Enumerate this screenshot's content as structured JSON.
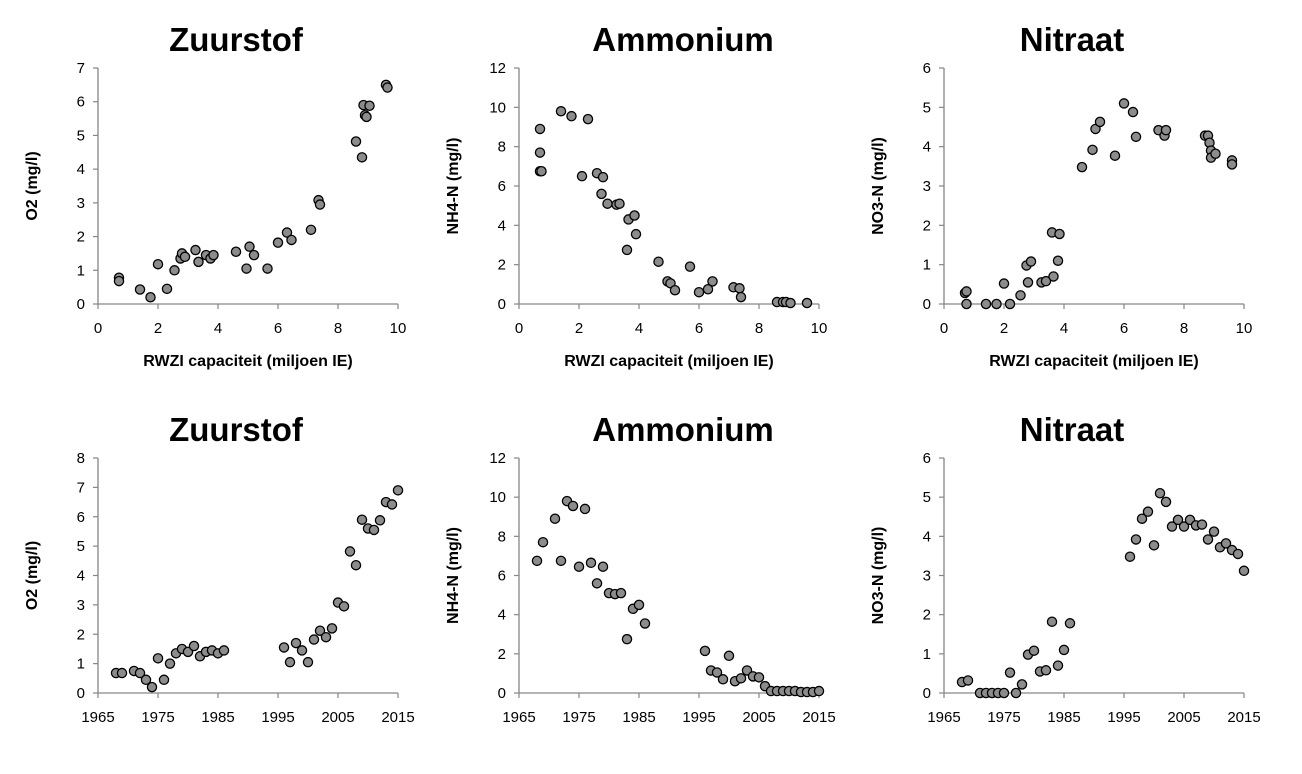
{
  "chart_data": [
    {
      "type": "scatter",
      "title": "Zuurstof",
      "xlabel": "RWZI capaciteit (miljoen IE)",
      "ylabel": "O2 (mg/l)",
      "xlim": [
        0,
        10
      ],
      "ylim": [
        0,
        7
      ],
      "xticks": [
        "0",
        "2",
        "4",
        "6",
        "8",
        "10"
      ],
      "yticks": [
        "0",
        "1",
        "2",
        "3",
        "4",
        "5",
        "6",
        "7"
      ],
      "x": [
        0.7,
        0.7,
        1.4,
        1.75,
        2.0,
        2.3,
        2.55,
        2.75,
        2.8,
        2.9,
        3.25,
        3.35,
        3.6,
        3.75,
        3.85,
        4.6,
        4.95,
        5.05,
        5.2,
        5.65,
        6.0,
        6.3,
        6.45,
        7.1,
        7.35,
        7.4,
        8.6,
        8.8,
        8.85,
        8.9,
        8.95,
        9.05,
        9.6,
        9.65
      ],
      "y": [
        0.78,
        0.68,
        0.43,
        0.2,
        1.18,
        0.45,
        1.0,
        1.35,
        1.5,
        1.4,
        1.6,
        1.25,
        1.45,
        1.35,
        1.45,
        1.55,
        1.05,
        1.7,
        1.45,
        1.05,
        1.82,
        2.12,
        1.9,
        2.2,
        3.08,
        2.95,
        4.82,
        4.35,
        5.9,
        5.6,
        5.55,
        5.88,
        6.5,
        6.42
      ]
    },
    {
      "type": "scatter",
      "title": "Ammonium",
      "xlabel": "RWZI capaciteit (miljoen IE)",
      "ylabel": "NH4-N (mg/l)",
      "xlim": [
        0,
        10
      ],
      "ylim": [
        0,
        12
      ],
      "xticks": [
        "0",
        "2",
        "4",
        "6",
        "8",
        "10"
      ],
      "yticks": [
        "0",
        "2",
        "4",
        "6",
        "8",
        "10",
        "12"
      ],
      "x": [
        0.7,
        0.7,
        0.7,
        0.75,
        1.4,
        1.75,
        2.1,
        2.3,
        2.6,
        2.75,
        2.8,
        2.95,
        3.25,
        3.35,
        3.6,
        3.65,
        3.85,
        3.9,
        4.65,
        4.95,
        5.05,
        5.2,
        5.7,
        6.0,
        6.3,
        6.45,
        7.15,
        7.35,
        7.4,
        8.6,
        8.8,
        8.9,
        9.05,
        9.6
      ],
      "y": [
        8.9,
        7.7,
        6.75,
        6.75,
        9.8,
        9.55,
        6.5,
        9.4,
        6.65,
        5.6,
        6.45,
        5.1,
        5.05,
        5.1,
        2.75,
        4.3,
        4.5,
        3.55,
        2.15,
        1.15,
        1.05,
        0.7,
        1.9,
        0.6,
        0.75,
        1.15,
        0.85,
        0.8,
        0.35,
        0.1,
        0.1,
        0.1,
        0.05,
        0.05
      ]
    },
    {
      "type": "scatter",
      "title": "Nitraat",
      "xlabel": "RWZI capaciteit (miljoen IE)",
      "ylabel": "NO3-N (mg/l)",
      "xlim": [
        0,
        10
      ],
      "ylim": [
        0,
        6
      ],
      "xticks": [
        "0",
        "2",
        "4",
        "6",
        "8",
        "10"
      ],
      "yticks": [
        "0",
        "1",
        "2",
        "3",
        "4",
        "5",
        "6"
      ],
      "x": [
        0.7,
        0.75,
        0.75,
        1.4,
        1.75,
        2.0,
        2.2,
        2.55,
        2.75,
        2.8,
        2.9,
        3.25,
        3.4,
        3.6,
        3.65,
        3.8,
        3.85,
        4.6,
        4.95,
        5.05,
        5.2,
        5.7,
        6.0,
        6.3,
        6.4,
        7.15,
        7.35,
        7.4,
        8.7,
        8.8,
        8.85,
        8.9,
        8.9,
        9.05,
        9.6,
        9.6
      ],
      "y": [
        0.28,
        0.32,
        0.0,
        0.0,
        0.0,
        0.52,
        0.0,
        0.22,
        0.98,
        0.55,
        1.08,
        0.55,
        0.58,
        1.82,
        0.7,
        1.1,
        1.78,
        3.48,
        3.92,
        4.45,
        4.63,
        3.77,
        5.1,
        4.88,
        4.25,
        4.42,
        4.28,
        4.42,
        4.28,
        4.28,
        4.1,
        3.9,
        3.72,
        3.82,
        3.65,
        3.55
      ]
    },
    {
      "type": "scatter",
      "title": "Zuurstof",
      "xlabel": "",
      "ylabel": "O2 (mg/l)",
      "xlim": [
        1965,
        2015
      ],
      "ylim": [
        0,
        8
      ],
      "xticks": [
        "1965",
        "1975",
        "1985",
        "1995",
        "2005",
        "2015"
      ],
      "yticks": [
        "0",
        "1",
        "2",
        "3",
        "4",
        "5",
        "6",
        "7",
        "8"
      ],
      "x": [
        1968,
        1969,
        1971,
        1972,
        1973,
        1974,
        1975,
        1976,
        1977,
        1978,
        1979,
        1980,
        1981,
        1982,
        1983,
        1984,
        1985,
        1986,
        1996,
        1997,
        1998,
        1999,
        2000,
        2001,
        2002,
        2003,
        2004,
        2005,
        2006,
        2007,
        2008,
        2009,
        2010,
        2011,
        2012,
        2013,
        2014,
        2015
      ],
      "y": [
        0.68,
        0.68,
        0.75,
        0.68,
        0.45,
        0.2,
        1.18,
        0.45,
        1.0,
        1.35,
        1.5,
        1.4,
        1.6,
        1.25,
        1.4,
        1.45,
        1.35,
        1.45,
        1.55,
        1.05,
        1.7,
        1.45,
        1.05,
        1.82,
        2.12,
        1.9,
        2.2,
        3.08,
        2.95,
        4.82,
        4.35,
        5.9,
        5.6,
        5.55,
        5.88,
        6.5,
        6.42,
        6.9
      ]
    },
    {
      "type": "scatter",
      "title": "Ammonium",
      "xlabel": "",
      "ylabel": "NH4-N (mg/l)",
      "xlim": [
        1965,
        2015
      ],
      "ylim": [
        0,
        12
      ],
      "xticks": [
        "1965",
        "1975",
        "1985",
        "1995",
        "2005",
        "2015"
      ],
      "yticks": [
        "0",
        "2",
        "4",
        "6",
        "8",
        "10",
        "12"
      ],
      "x": [
        1968,
        1969,
        1971,
        1972,
        1973,
        1974,
        1975,
        1976,
        1977,
        1978,
        1979,
        1980,
        1981,
        1982,
        1983,
        1984,
        1985,
        1986,
        1996,
        1997,
        1998,
        1999,
        2000,
        2001,
        2002,
        2003,
        2004,
        2005,
        2006,
        2007,
        2008,
        2009,
        2010,
        2011,
        2012,
        2013,
        2014,
        2015
      ],
      "y": [
        6.75,
        7.7,
        8.9,
        6.75,
        9.8,
        9.55,
        6.45,
        9.4,
        6.65,
        5.6,
        6.45,
        5.1,
        5.05,
        5.1,
        2.75,
        4.3,
        4.5,
        3.55,
        2.15,
        1.15,
        1.05,
        0.7,
        1.9,
        0.6,
        0.75,
        1.15,
        0.85,
        0.8,
        0.35,
        0.1,
        0.1,
        0.1,
        0.1,
        0.1,
        0.05,
        0.05,
        0.05,
        0.1
      ]
    },
    {
      "type": "scatter",
      "title": "Nitraat",
      "xlabel": "",
      "ylabel": "NO3-N (mg/l)",
      "xlim": [
        1965,
        2015
      ],
      "ylim": [
        0,
        6
      ],
      "xticks": [
        "1965",
        "1975",
        "1985",
        "1995",
        "2005",
        "2015"
      ],
      "yticks": [
        "0",
        "1",
        "2",
        "3",
        "4",
        "5",
        "6"
      ],
      "x": [
        1968,
        1969,
        1971,
        1972,
        1973,
        1974,
        1975,
        1976,
        1977,
        1978,
        1979,
        1980,
        1981,
        1982,
        1983,
        1984,
        1985,
        1986,
        1996,
        1997,
        1998,
        1999,
        2000,
        2001,
        2002,
        2003,
        2004,
        2005,
        2006,
        2007,
        2008,
        2009,
        2010,
        2011,
        2012,
        2013,
        2014,
        2015
      ],
      "y": [
        0.28,
        0.32,
        0.0,
        0.0,
        0.0,
        0.0,
        0.0,
        0.52,
        0.0,
        0.22,
        0.98,
        1.08,
        0.55,
        0.58,
        1.82,
        0.7,
        1.1,
        1.78,
        3.48,
        3.92,
        4.45,
        4.63,
        3.77,
        5.1,
        4.88,
        4.25,
        4.42,
        4.25,
        4.42,
        4.28,
        4.3,
        3.92,
        4.12,
        3.72,
        3.82,
        3.65,
        3.55,
        3.12
      ]
    }
  ],
  "style": {
    "marker_fill": "#8c8c8c",
    "marker_stroke": "#000000",
    "axis_color": "#868686"
  }
}
